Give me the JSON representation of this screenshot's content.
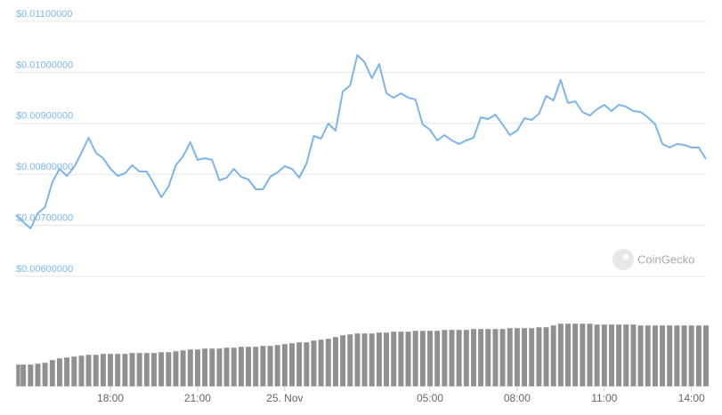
{
  "chart_data": [
    {
      "type": "line",
      "color": "#7cb5ec",
      "grid": true,
      "xlim": [
        -9.25,
        14.5
      ],
      "xticks": [
        {
          "value": -6,
          "label": "18:00"
        },
        {
          "value": -3,
          "label": "21:00"
        },
        {
          "value": 0,
          "label": "25. Nov"
        },
        {
          "value": 5,
          "label": "05:00"
        },
        {
          "value": 8,
          "label": "08:00"
        },
        {
          "value": 11,
          "label": "11:00"
        },
        {
          "value": 14,
          "label": "14:00"
        }
      ],
      "ylim": [
        0.006,
        0.011
      ],
      "yticks": [
        {
          "value": 0.011,
          "label": "$0.01100000"
        },
        {
          "value": 0.01,
          "label": "$0.01000000"
        },
        {
          "value": 0.009,
          "label": "$0.00900000"
        },
        {
          "value": 0.008,
          "label": "$0.00800000"
        },
        {
          "value": 0.007,
          "label": "$0.00700000"
        },
        {
          "value": 0.006,
          "label": "$0.00600000"
        }
      ],
      "watermark": "CoinGecko",
      "x": [
        -9.25,
        -9,
        -8.75,
        -8.5,
        -8.25,
        -8,
        -7.75,
        -7.5,
        -7.25,
        -7,
        -6.75,
        -6.5,
        -6.25,
        -6,
        -5.75,
        -5.5,
        -5.25,
        -5,
        -4.75,
        -4.5,
        -4.25,
        -4,
        -3.75,
        -3.5,
        -3.25,
        -3,
        -2.75,
        -2.5,
        -2.25,
        -2,
        -1.75,
        -1.5,
        -1.25,
        -1,
        -0.75,
        -0.5,
        -0.25,
        0,
        0.25,
        0.5,
        0.75,
        1,
        1.25,
        1.5,
        1.75,
        2,
        2.25,
        2.5,
        2.75,
        3,
        3.25,
        3.5,
        3.75,
        4,
        4.25,
        4.5,
        4.75,
        5,
        5.25,
        5.5,
        5.75,
        6,
        6.25,
        6.5,
        6.75,
        7,
        7.25,
        7.5,
        7.75,
        8,
        8.25,
        8.5,
        8.75,
        9,
        9.25,
        9.5,
        9.75,
        10,
        10.25,
        10.5,
        10.75,
        11,
        11.25,
        11.5,
        11.75,
        12,
        12.25,
        12.5,
        12.75,
        13,
        13.25,
        13.5,
        13.75,
        14,
        14.25,
        14.5
      ],
      "values": [
        0.007202,
        0.007063,
        0.006941,
        0.007237,
        0.007359,
        0.007847,
        0.008108,
        0.007969,
        0.008143,
        0.008422,
        0.008718,
        0.008422,
        0.008317,
        0.008108,
        0.007969,
        0.008021,
        0.008178,
        0.008056,
        0.008056,
        0.007812,
        0.007551,
        0.00776,
        0.008178,
        0.008352,
        0.008631,
        0.008282,
        0.008317,
        0.008282,
        0.007882,
        0.007934,
        0.008108,
        0.007951,
        0.007899,
        0.007707,
        0.007707,
        0.007951,
        0.008038,
        0.00816,
        0.008108,
        0.007934,
        0.008213,
        0.008753,
        0.0087,
        0.008997,
        0.008857,
        0.009624,
        0.009746,
        0.010338,
        0.010199,
        0.009885,
        0.010164,
        0.009589,
        0.009502,
        0.009589,
        0.009502,
        0.009467,
        0.008979,
        0.008875,
        0.008666,
        0.00877,
        0.008666,
        0.008596,
        0.008666,
        0.008718,
        0.009118,
        0.009084,
        0.009171,
        0.008979,
        0.00877,
        0.008857,
        0.009101,
        0.009066,
        0.009188,
        0.009537,
        0.009449,
        0.00985,
        0.009397,
        0.009432,
        0.009223,
        0.009153,
        0.009275,
        0.009362,
        0.00924,
        0.009362,
        0.009328,
        0.00924,
        0.009223,
        0.009118,
        0.008979,
        0.008596,
        0.008526,
        0.008596,
        0.008578,
        0.008526,
        0.008526,
        0.0083
      ]
    },
    {
      "type": "bar",
      "color": "#909090",
      "values": [
        25,
        25,
        25,
        26,
        27,
        30,
        32,
        33,
        34,
        35,
        36,
        36,
        37,
        37,
        37,
        37,
        38,
        38,
        38,
        38,
        39,
        39,
        40,
        41,
        42,
        42,
        43,
        43,
        43,
        44,
        44,
        45,
        45,
        45,
        46,
        46,
        47,
        48,
        49,
        50,
        50,
        52,
        53,
        54,
        56,
        58,
        59,
        60,
        60,
        60,
        61,
        61,
        62,
        62,
        62,
        63,
        63,
        63,
        63,
        64,
        64,
        64,
        64,
        65,
        65,
        65,
        65,
        65,
        66,
        66,
        66,
        66,
        67,
        67,
        69,
        71,
        71,
        71,
        71,
        71,
        70,
        70,
        70,
        70,
        70,
        70,
        69,
        69,
        69,
        69,
        69,
        69,
        69,
        69,
        69,
        69
      ]
    }
  ]
}
